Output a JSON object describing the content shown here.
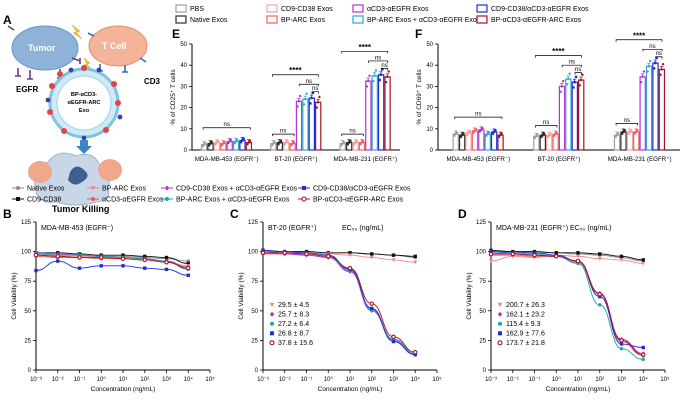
{
  "panel_letters": [
    "A",
    "B",
    "C",
    "D",
    "E",
    "F"
  ],
  "schematic": {
    "tumor": "Tumor",
    "tcell": "T Cell",
    "egfr": "EGFR",
    "cd3": "CD3",
    "exo_label_1": "BP-αCD3-",
    "exo_label_2": "αEGFR-ARC",
    "exo_label_3": "Exo",
    "killing": "Tumor Killing"
  },
  "legend_top": [
    {
      "label": "PBS",
      "color": "#9e9e9e",
      "marker": "circle"
    },
    {
      "label": "Native Exos",
      "color": "#2f2f2f",
      "marker": "square"
    },
    {
      "label": "CD9-CD38 Exos",
      "color": "#f2a0a0",
      "marker": "square"
    },
    {
      "label": "BP-ARC Exos",
      "color": "#e8635d",
      "marker": "square"
    },
    {
      "label": "αCD3-αEGFR Exos",
      "color": "#b233d6",
      "marker": "square"
    },
    {
      "label": "BP-ARC Exos + αCD3-αEGFR Exos",
      "color": "#2fa8c7",
      "marker": "square"
    },
    {
      "label": "CD9-CD38/αCD3-αEGFR Exos",
      "color": "#1f2fd6",
      "marker": "square"
    },
    {
      "label": "BP-αCD3-αEGFR-ARC Exos",
      "color": "#a3141e",
      "marker": "square"
    }
  ],
  "legend_mid": [
    {
      "label": "Native Exos",
      "color": "#8a8a8a",
      "marker": "circle"
    },
    {
      "label": "CD9-CD38",
      "color": "#111111",
      "marker": "square"
    },
    {
      "label": "BP-ARC Exos",
      "color": "#f08a8a",
      "marker": "triangle-down"
    },
    {
      "label": "αCD3-αEGFR Exos",
      "color": "#f2545b",
      "marker": "circle"
    },
    {
      "label": "CD9-CD38 Exos + αCD3-αEGFR Exos",
      "color": "#b233d6",
      "marker": "diamond"
    },
    {
      "label": "BP-ARC Exos + αCD3-αEGFR Exos",
      "color": "#1aa6a6",
      "marker": "circle"
    },
    {
      "label": "CD9-CD38/αCD3-αEGFR Exos",
      "color": "#1f2fd6",
      "marker": "square"
    },
    {
      "label": "BP-αCD3-αEGFR-ARC Exos",
      "color": "#a3141e",
      "marker": "open-circle"
    }
  ],
  "chart_data": [
    {
      "id": "E",
      "type": "bar",
      "ylabel": "% of CD25⁺ T cells",
      "ylim": [
        0,
        50
      ],
      "yticks": [
        0,
        10,
        20,
        30,
        40,
        50
      ],
      "categories": [
        "MDA-MB-453 (EGFR⁻)",
        "BT-20 (EGFR⁺)",
        "MDA-MB-231 (EGFR⁺)"
      ],
      "series": [
        {
          "name": "PBS",
          "values": [
            2.5,
            3.0,
            3.0
          ]
        },
        {
          "name": "Native Exos",
          "values": [
            3.0,
            3.5,
            3.5
          ]
        },
        {
          "name": "CD9-CD38 Exos",
          "values": [
            3.5,
            3.5,
            3.5
          ]
        },
        {
          "name": "BP-ARC Exos",
          "values": [
            3.0,
            3.0,
            3.5
          ]
        },
        {
          "name": "αCD3-αEGFR Exos",
          "values": [
            4.0,
            23.0,
            32.5
          ]
        },
        {
          "name": "BP-ARC Exos + αCD3-αEGFR Exos",
          "values": [
            4.0,
            24.0,
            35.0
          ]
        },
        {
          "name": "CD9-CD38/αCD3-αEGFR Exos",
          "values": [
            4.5,
            24.5,
            35.5
          ]
        },
        {
          "name": "BP-αCD3-αEGFR-ARC Exos",
          "values": [
            3.5,
            22.5,
            34.5
          ]
        }
      ],
      "annotations": [
        "ns",
        "ns",
        "****",
        "ns",
        "ns",
        "ns",
        "****",
        "ns",
        "ns"
      ]
    },
    {
      "id": "F",
      "type": "bar",
      "ylabel": "% of CD69⁺ T cells",
      "ylim": [
        0,
        50
      ],
      "yticks": [
        0,
        10,
        20,
        30,
        40,
        50
      ],
      "categories": [
        "MDA-MB-453 (EGFR⁻)",
        "BT-20 (EGFR⁺)",
        "MDA-MB-231 (EGFR⁺)"
      ],
      "series": [
        {
          "name": "PBS",
          "values": [
            7.5,
            6.5,
            7.0
          ]
        },
        {
          "name": "Native Exos",
          "values": [
            7.0,
            7.0,
            8.5
          ]
        },
        {
          "name": "CD9-CD38 Exos",
          "values": [
            8.0,
            7.0,
            8.5
          ]
        },
        {
          "name": "BP-ARC Exos",
          "values": [
            9.0,
            7.5,
            8.5
          ]
        },
        {
          "name": "αCD3-αEGFR Exos",
          "values": [
            9.5,
            30.0,
            34.5
          ]
        },
        {
          "name": "BP-ARC Exos + αCD3-αEGFR Exos",
          "values": [
            7.5,
            33.5,
            39.5
          ]
        },
        {
          "name": "CD9-CD38/αCD3-αEGFR Exos",
          "values": [
            8.5,
            32.0,
            41.0
          ]
        },
        {
          "name": "BP-αCD3-αEGFR-ARC Exos",
          "values": [
            7.0,
            33.0,
            38.0
          ]
        }
      ],
      "annotations": [
        "ns",
        "ns",
        "****",
        "ns",
        "ns",
        "ns",
        "****",
        "ns",
        "ns"
      ]
    },
    {
      "id": "B",
      "type": "line",
      "title": "MDA-MB-453 (EGFR⁻)",
      "xlabel": "Concentration (ng/mL)",
      "ylabel": "Cell Viability (%)",
      "xscale": "log",
      "xlim": [
        -3,
        5
      ],
      "ylim": [
        0,
        125
      ],
      "yticks": [
        0,
        25,
        50,
        75,
        100,
        125
      ],
      "xtick_labels": [
        "10⁻³",
        "10⁻²",
        "10⁻¹",
        "10⁰",
        "10¹",
        "10²",
        "10³",
        "10⁴",
        "10⁵"
      ],
      "x": [
        0.001,
        0.01,
        0.1,
        1,
        10,
        100,
        1000,
        10000
      ],
      "series": [
        {
          "name": "Native Exos",
          "values": [
            98,
            97,
            97,
            96,
            96,
            95,
            94,
            92
          ]
        },
        {
          "name": "CD9-CD38",
          "values": [
            99,
            99,
            98,
            97,
            97,
            96,
            95,
            90
          ]
        },
        {
          "name": "BP-ARC Exos",
          "values": [
            97,
            96,
            96,
            95,
            94,
            93,
            91,
            88
          ]
        },
        {
          "name": "αCD3-αEGFR Exos",
          "values": [
            96,
            95,
            95,
            94,
            94,
            93,
            92,
            87
          ]
        },
        {
          "name": "CD9-CD38 Exos + αCD3-αEGFR Exos",
          "values": [
            99,
            98,
            97,
            96,
            95,
            94,
            92,
            86
          ]
        },
        {
          "name": "BP-ARC Exos + αCD3-αEGFR Exos",
          "values": [
            98,
            97,
            97,
            96,
            95,
            94,
            92,
            85
          ]
        },
        {
          "name": "CD9-CD38/αCD3-αEGFR Exos",
          "values": [
            84,
            92,
            86,
            88,
            88,
            86,
            85,
            80
          ]
        },
        {
          "name": "BP-αCD3-αEGFR-ARC Exos",
          "values": [
            97,
            96,
            95,
            95,
            94,
            93,
            91,
            86
          ]
        }
      ]
    },
    {
      "id": "C",
      "type": "line",
      "title": "BT-20 (EGFR⁺)",
      "ec50_header": "EC₅₀ (ng/mL)",
      "xlabel": "Concentration (ng/mL)",
      "ylabel": "Cell Viability (%)",
      "xscale": "log",
      "xlim": [
        -3,
        5
      ],
      "ylim": [
        0,
        125
      ],
      "yticks": [
        0,
        25,
        50,
        75,
        100,
        125
      ],
      "xtick_labels": [
        "10⁻³",
        "10⁻²",
        "10⁻¹",
        "10⁰",
        "10¹",
        "10²",
        "10³",
        "10⁴",
        "10⁵"
      ],
      "x": [
        0.001,
        0.01,
        0.1,
        1,
        10,
        100,
        1000,
        10000
      ],
      "series": [
        {
          "name": "Native Exos",
          "values": [
            100,
            100,
            100,
            99,
            99,
            98,
            97,
            95
          ]
        },
        {
          "name": "CD9-CD38",
          "values": [
            101,
            100,
            100,
            99,
            99,
            98,
            97,
            96
          ]
        },
        {
          "name": "BP-ARC Exos",
          "values": [
            100,
            99,
            99,
            98,
            97,
            95,
            93,
            91
          ]
        },
        {
          "name": "αCD3-αEGFR Exos",
          "values": [
            98,
            98,
            97,
            95,
            84,
            52,
            26,
            14
          ]
        },
        {
          "name": "CD9-CD38 Exos + αCD3-αEGFR Exos",
          "values": [
            99,
            98,
            97,
            95,
            83,
            50,
            25,
            13
          ]
        },
        {
          "name": "BP-ARC Exos + αCD3-αEGFR Exos",
          "values": [
            100,
            99,
            98,
            96,
            84,
            51,
            26,
            14
          ]
        },
        {
          "name": "CD9-CD38/αCD3-αEGFR Exos",
          "values": [
            101,
            100,
            99,
            97,
            85,
            52,
            24,
            13
          ]
        },
        {
          "name": "BP-αCD3-αEGFR-ARC Exos",
          "values": [
            99,
            99,
            98,
            96,
            86,
            56,
            28,
            15
          ]
        }
      ],
      "ec50": [
        "29.5 ± 4.5",
        "25.7 ± 8.3",
        "27.2 ± 6.4",
        "26.8 ± 8.7",
        "37.8 ± 15.6"
      ]
    },
    {
      "id": "D",
      "type": "line",
      "title": "MDA-MB-231 (EGFR⁺)",
      "ec50_header": "EC₅₀ (ng/mL)",
      "xlabel": "Concentration (ng/mL)",
      "ylabel": "Cell Viability (%)",
      "xscale": "log",
      "xlim": [
        -3,
        5
      ],
      "ylim": [
        0,
        125
      ],
      "yticks": [
        0,
        25,
        50,
        75,
        100,
        125
      ],
      "xtick_labels": [
        "10⁻³",
        "10⁻²",
        "10⁻¹",
        "10⁰",
        "10¹",
        "10²",
        "10³",
        "10⁴",
        "10⁵"
      ],
      "x": [
        0.001,
        0.01,
        0.1,
        1,
        10,
        100,
        1000,
        10000
      ],
      "series": [
        {
          "name": "Native Exos",
          "values": [
            100,
            100,
            99,
            99,
            98,
            97,
            95,
            92
          ]
        },
        {
          "name": "CD9-CD38",
          "values": [
            101,
            100,
            100,
            99,
            99,
            98,
            96,
            93
          ]
        },
        {
          "name": "BP-ARC Exos",
          "values": [
            92,
            96,
            95,
            97,
            96,
            94,
            93,
            90
          ]
        },
        {
          "name": "αCD3-αEGFR Exos",
          "values": [
            97,
            97,
            96,
            96,
            91,
            62,
            24,
            12
          ]
        },
        {
          "name": "CD9-CD38 Exos + αCD3-αEGFR Exos",
          "values": [
            98,
            98,
            97,
            96,
            92,
            65,
            26,
            14
          ]
        },
        {
          "name": "BP-ARC Exos + αCD3-αEGFR Exos",
          "values": [
            99,
            98,
            98,
            96,
            90,
            55,
            18,
            9
          ]
        },
        {
          "name": "CD9-CD38/αCD3-αEGFR Exos",
          "values": [
            100,
            99,
            99,
            97,
            92,
            62,
            22,
            19
          ]
        },
        {
          "name": "BP-αCD3-αEGFR-ARC Exos",
          "values": [
            98,
            98,
            97,
            96,
            92,
            64,
            25,
            13
          ]
        }
      ],
      "ec50": [
        "200.7 ± 26.3",
        "162.1 ± 23.2",
        "115.4 ± 9.3",
        "162.9 ± 77.6",
        "173.7 ± 21.8"
      ]
    }
  ]
}
